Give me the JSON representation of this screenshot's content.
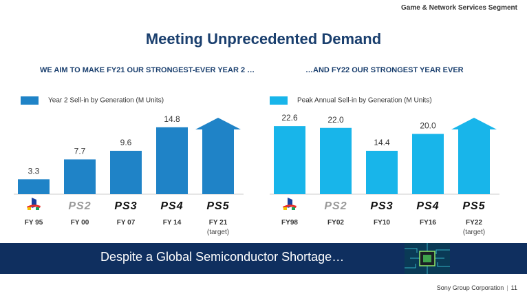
{
  "header": {
    "segment": "Game & Network Services Segment"
  },
  "title": "Meeting Unprecedented Demand",
  "colors": {
    "left_bar": "#1f83c7",
    "right_bar": "#18b5ea",
    "navy": "#1a3f6e",
    "banner": "#0f2f5f"
  },
  "chart_data": [
    {
      "type": "bar",
      "subtitle": "WE AIM TO MAKE FY21 OUR STRONGEST-EVER YEAR 2 …",
      "legend": "Year 2 Sell-in by Generation (M Units)",
      "categories": [
        "FY 95",
        "FY 00",
        "FY 07",
        "FY 14",
        "FY 21"
      ],
      "category_notes": [
        "",
        "",
        "",
        "",
        "(target)"
      ],
      "consoles": [
        "PlayStation",
        "PS2",
        "PS3",
        "PS4",
        "PS5"
      ],
      "values": [
        3.3,
        7.7,
        9.6,
        14.8,
        null
      ],
      "value_labels": [
        "3.3",
        "7.7",
        "9.6",
        "14.8",
        ""
      ],
      "ylim": [
        0,
        16
      ],
      "target_arrow_index": 4
    },
    {
      "type": "bar",
      "subtitle": "…AND FY22 OUR STRONGEST YEAR EVER",
      "legend": "Peak Annual Sell-in by Generation  (M Units)",
      "categories": [
        "FY98",
        "FY02",
        "FY10",
        "FY16",
        "FY22"
      ],
      "category_notes": [
        "",
        "",
        "",
        "",
        "(target)"
      ],
      "consoles": [
        "PlayStation",
        "PS2",
        "PS3",
        "PS4",
        "PS5"
      ],
      "values": [
        22.6,
        22.0,
        14.4,
        20.0,
        null
      ],
      "value_labels": [
        "22.6",
        "22.0",
        "14.4",
        "20.0",
        ""
      ],
      "ylim": [
        0,
        24
      ],
      "target_arrow_index": 4
    }
  ],
  "banner": {
    "text": "Despite a Global Semiconductor Shortage…"
  },
  "footer": {
    "company": "Sony Group Corporation",
    "separator": "|",
    "page": "11"
  }
}
